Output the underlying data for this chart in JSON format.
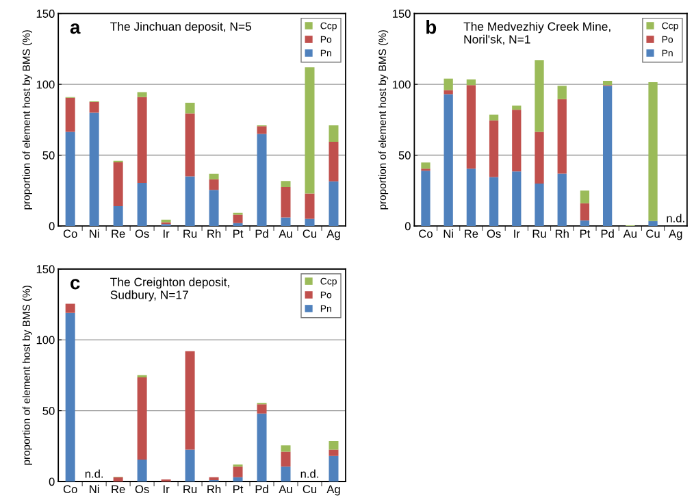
{
  "chart_data": [
    {
      "type": "bar",
      "stacked": true,
      "title": "The Jinchuan deposit, N=5",
      "ylabel": "proportion of element host by BMS (%)",
      "annotations": [
        "a"
      ],
      "categories": [
        "Co",
        "Ni",
        "Re",
        "Os",
        "Ir",
        "Ru",
        "Rh",
        "Pt",
        "Pd",
        "Au",
        "Cu",
        "Ag"
      ],
      "series": [
        {
          "name": "Pn",
          "color": "#4f81bd",
          "values": [
            66.5,
            80,
            14,
            30.5,
            1.3,
            35,
            25.5,
            2,
            65,
            6,
            5,
            31.5
          ]
        },
        {
          "name": "Po",
          "color": "#c0504d",
          "values": [
            24,
            7.5,
            31,
            60.5,
            1.3,
            44.5,
            7.5,
            6,
            5.5,
            21.5,
            18,
            28
          ]
        },
        {
          "name": "Ccp",
          "color": "#9bbb59",
          "values": [
            0.5,
            0.5,
            1,
            3.5,
            1.8,
            7.5,
            3.8,
            1.3,
            0.5,
            4.3,
            89,
            11.5
          ]
        }
      ],
      "ylim": [
        0,
        150
      ],
      "yticks": [
        0,
        50,
        100,
        150
      ],
      "grid": "y",
      "legend": "top right"
    },
    {
      "type": "bar",
      "stacked": true,
      "title": "The Medvezhiy Creek Mine,\nNoril'sk, N=1",
      "ylabel": "proportion of element host by BMS (%)",
      "annotations": [
        "b",
        "n.d."
      ],
      "categories": [
        "Co",
        "Ni",
        "Re",
        "Os",
        "Ir",
        "Ru",
        "Rh",
        "Pt",
        "Pd",
        "Au",
        "Cu",
        "Ag"
      ],
      "series": [
        {
          "name": "Pn",
          "color": "#4f81bd",
          "values": [
            39,
            93,
            40.5,
            34.5,
            38.5,
            30,
            37,
            4,
            99,
            0,
            3.5,
            null
          ]
        },
        {
          "name": "Po",
          "color": "#c0504d",
          "values": [
            1.5,
            3,
            59,
            40,
            43.5,
            36.5,
            52.5,
            12,
            0.5,
            0,
            0,
            null
          ]
        },
        {
          "name": "Ccp",
          "color": "#9bbb59",
          "values": [
            4.3,
            8,
            4,
            4,
            3,
            50.5,
            9.5,
            9,
            3,
            0.5,
            98,
            null
          ]
        }
      ],
      "ylim": [
        0,
        150
      ],
      "yticks": [
        0,
        50,
        100,
        150
      ],
      "grid": "y",
      "legend": "top right"
    },
    {
      "type": "bar",
      "stacked": true,
      "title": "The Creighton deposit,\nSudbury, N=17",
      "ylabel": "proportion of element host by BMS (%)",
      "annotations": [
        "c",
        "n.d.",
        "n.d."
      ],
      "categories": [
        "Co",
        "Ni",
        "Re",
        "Os",
        "Ir",
        "Ru",
        "Rh",
        "Pt",
        "Pd",
        "Au",
        "Cu",
        "Ag"
      ],
      "series": [
        {
          "name": "Pn",
          "color": "#4f81bd",
          "values": [
            119,
            null,
            0,
            15.5,
            0,
            22.5,
            1,
            3,
            48,
            10.5,
            null,
            18
          ]
        },
        {
          "name": "Po",
          "color": "#c0504d",
          "values": [
            6.5,
            null,
            3,
            58,
            1.5,
            69.5,
            2,
            7.5,
            6.5,
            10.5,
            null,
            4.5
          ]
        },
        {
          "name": "Ccp",
          "color": "#9bbb59",
          "values": [
            0,
            null,
            0.3,
            1.5,
            0,
            0,
            0,
            1.5,
            1,
            4.5,
            null,
            6
          ]
        }
      ],
      "ylim": [
        0,
        150
      ],
      "yticks": [
        0,
        50,
        100,
        150
      ],
      "grid": "y",
      "legend": "top right"
    }
  ]
}
